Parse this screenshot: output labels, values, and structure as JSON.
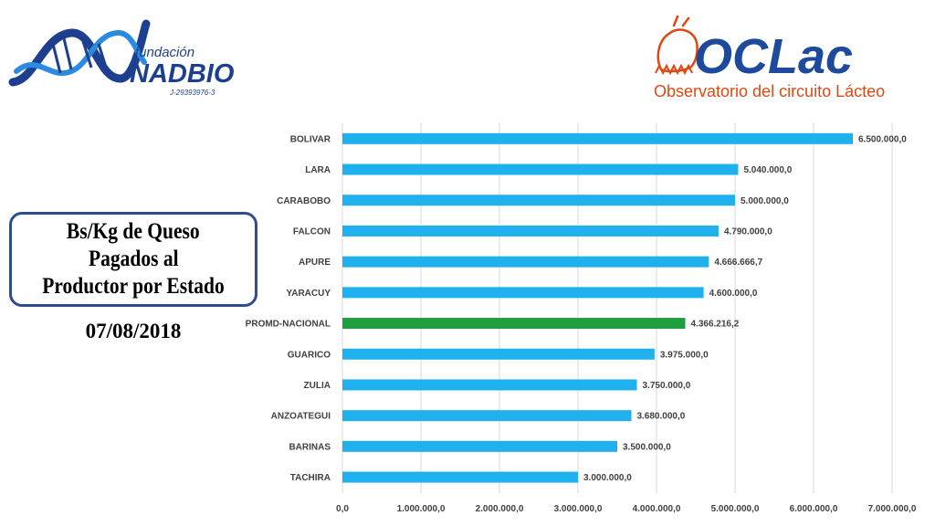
{
  "logos": {
    "left": {
      "small_text": "fundación",
      "name": "NADBIO",
      "id": "J-29393976-3"
    },
    "right": {
      "name": "OCLac",
      "subtitle": "Observatorio del circuito Lácteo"
    }
  },
  "title": {
    "lines": [
      "Bs/Kg de Queso",
      "Pagados al",
      "Productor por Estado"
    ],
    "date": "07/08/2018"
  },
  "colors": {
    "bar": "#1fb0ee",
    "highlight": "#1f9e3f",
    "frame": "#2e4d8c",
    "brand_orange": "#e04812",
    "brand_blue": "#1d4a9c"
  },
  "chart_data": {
    "type": "bar",
    "orientation": "horizontal",
    "categories": [
      "BOLIVAR",
      "LARA",
      "CARABOBO",
      "FALCON",
      "APURE",
      "YARACUY",
      "PROMD-NACIONAL",
      "GUARICO",
      "ZULIA",
      "ANZOATEGUI",
      "BARINAS",
      "TACHIRA"
    ],
    "values": [
      6500000,
      5040000,
      5000000,
      4790000,
      4666666.7,
      4600000,
      4366216.2,
      3975000,
      3750000,
      3680000,
      3500000,
      3000000
    ],
    "value_labels": [
      "6.500.000,0",
      "5.040.000,0",
      "5.000.000,0",
      "4.790.000,0",
      "4.666.666,7",
      "4.600.000,0",
      "4.366.216,2",
      "3.975.000,0",
      "3.750.000,0",
      "3.680.000,0",
      "3.500.000,0",
      "3.000.000,0"
    ],
    "highlight_category": "PROMD-NACIONAL",
    "xlim": [
      0,
      7000000
    ],
    "xticks": [
      0,
      1000000,
      2000000,
      3000000,
      4000000,
      5000000,
      6000000,
      7000000
    ],
    "xtick_labels": [
      "0,0",
      "1.000.000,0",
      "2.000.000,0",
      "3.000.000,0",
      "4.000.000,0",
      "5.000.000,0",
      "6.000.000,0",
      "7.000.000,0"
    ],
    "grid": true,
    "legend": "none"
  }
}
